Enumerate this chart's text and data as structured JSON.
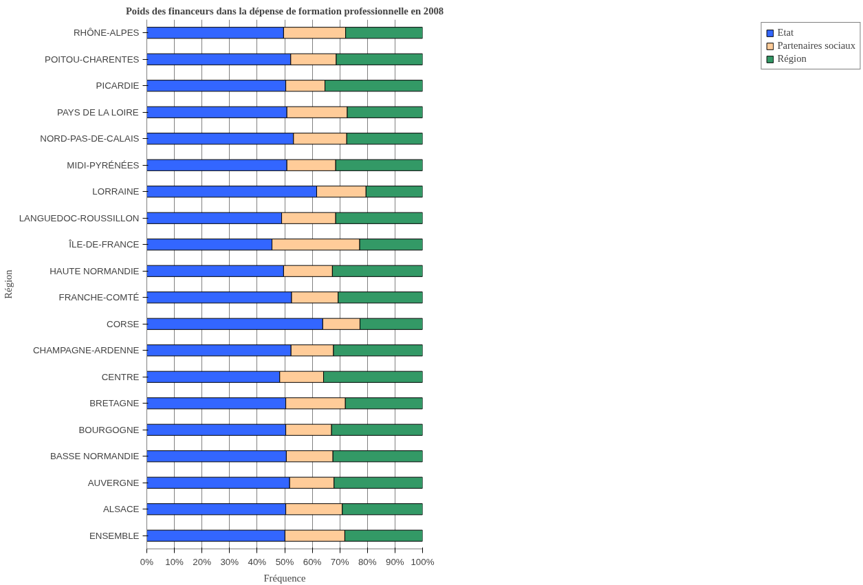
{
  "chart_data": {
    "type": "bar",
    "orientation": "horizontal",
    "stacked": true,
    "title": "Poids des financeurs dans la dépense de formation professionnelle en 2008",
    "xlabel": "Fréquence",
    "ylabel": "Région",
    "categories": [
      "RHÔNE-ALPES",
      "POITOU-CHARENTES",
      "PICARDIE",
      "PAYS DE LA LOIRE",
      "NORD-PAS-DE-CALAIS",
      "MIDI-PYRÉNÉES",
      "LORRAINE",
      "LANGUEDOC-ROUSSILLON",
      "ÎLE-DE-FRANCE",
      "HAUTE NORMANDIE",
      "FRANCHE-COMTÉ",
      "CORSE",
      "CHAMPAGNE-ARDENNE",
      "CENTRE",
      "BRETAGNE",
      "BOURGOGNE",
      "BASSE NORMANDIE",
      "AUVERGNE",
      "ALSACE",
      "ENSEMBLE"
    ],
    "series": [
      {
        "name": "Etat",
        "color": "#3366ff",
        "values": [
          49.6,
          52.2,
          50.4,
          50.8,
          53.2,
          50.8,
          61.6,
          48.9,
          45.4,
          49.6,
          52.5,
          63.8,
          52.3,
          48.2,
          50.4,
          50.4,
          50.6,
          51.8,
          50.4,
          50.1
        ]
      },
      {
        "name": "Partenaires sociaux",
        "color": "#ffcc99",
        "values": [
          22.5,
          16.5,
          14.2,
          21.9,
          19.3,
          17.7,
          17.9,
          19.6,
          31.8,
          17.7,
          16.9,
          13.5,
          15.4,
          15.9,
          21.6,
          16.6,
          16.9,
          16.1,
          20.5,
          21.7
        ]
      },
      {
        "name": "Région",
        "color": "#339966",
        "values": [
          27.9,
          31.3,
          35.4,
          27.3,
          27.5,
          31.5,
          20.5,
          31.5,
          22.8,
          32.7,
          30.6,
          22.7,
          32.3,
          35.9,
          28.0,
          33.0,
          32.5,
          32.1,
          29.1,
          28.2
        ]
      }
    ],
    "xlim": [
      0,
      100
    ],
    "xticks": [
      {
        "value": 0,
        "label": "0%"
      },
      {
        "value": 10,
        "label": "10%"
      },
      {
        "value": 20,
        "label": "20%"
      },
      {
        "value": 30,
        "label": "30%"
      },
      {
        "value": 40,
        "label": "40%"
      },
      {
        "value": 50,
        "label": "50%"
      },
      {
        "value": 60,
        "label": "60%"
      },
      {
        "value": 70,
        "label": "70%"
      },
      {
        "value": 80,
        "label": "80%"
      },
      {
        "value": 90,
        "label": "90%"
      },
      {
        "value": 100,
        "label": "100%"
      }
    ],
    "grid": "x",
    "legend": "right"
  }
}
